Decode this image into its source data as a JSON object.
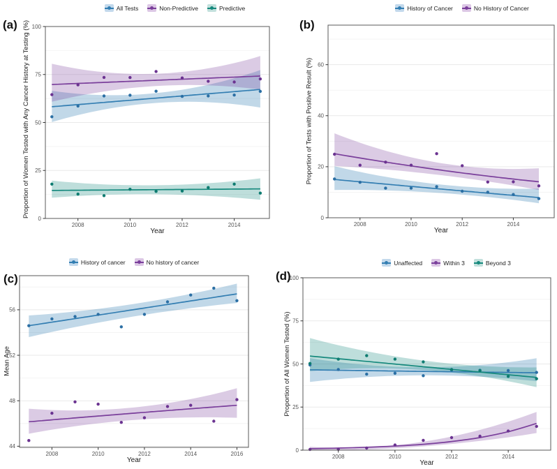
{
  "colors": {
    "blue": {
      "line": "#337eb2",
      "point": "#2b6fa4",
      "band": "rgba(51,126,178,0.30)",
      "key_bg": "#c3d9ec"
    },
    "purple": {
      "line": "#7a3f9b",
      "point": "#6b3391",
      "band": "rgba(122,63,155,0.27)",
      "key_bg": "#dcc7e5"
    },
    "teal": {
      "line": "#16897d",
      "point": "#0e7c71",
      "band": "rgba(22,137,125,0.28)",
      "key_bg": "#c2e0dc"
    }
  },
  "chart_data": [
    {
      "panel_label": "(a)",
      "type": "scatter",
      "xlabel": "Year",
      "ylabel": "Proportion of Women Tested with Any Cancer History at Testing (%)",
      "xlim": [
        2006.75,
        2015.35
      ],
      "ylim": [
        0,
        100
      ],
      "x_ticks": [
        2008,
        2010,
        2012,
        2014
      ],
      "y_ticks": [
        0,
        25,
        50,
        75,
        100
      ],
      "y_minor": [
        12.5,
        37.5,
        62.5,
        87.5
      ],
      "grid": "horizontal-only",
      "legend_position": "top",
      "years": [
        2007,
        2008,
        2009,
        2010,
        2011,
        2012,
        2013,
        2014,
        2015
      ],
      "series": [
        {
          "name": "All Tests",
          "color": "blue",
          "values": [
            53.0,
            58.6,
            63.8,
            64.2,
            66.3,
            63.6,
            63.8,
            64.3,
            66.2
          ],
          "trend": {
            "years": [
              2007,
              2011,
              2015
            ],
            "values": [
              58.2,
              62.7,
              67.2
            ]
          },
          "band": {
            "years": [
              2007,
              2011,
              2015
            ],
            "lo": [
              50.2,
              60.2,
              57.8
            ],
            "hi": [
              66.5,
              65.3,
              77.3
            ]
          }
        },
        {
          "name": "Non-Predictive",
          "color": "purple",
          "values": [
            64.5,
            69.6,
            73.5,
            73.4,
            76.6,
            73.2,
            71.5,
            71.1,
            72.7
          ],
          "trend": {
            "years": [
              2007,
              2011,
              2015
            ],
            "values": [
              69.8,
              72.0,
              74.2
            ]
          },
          "band": {
            "years": [
              2007,
              2011,
              2015
            ],
            "lo": [
              60.8,
              69.0,
              67.2
            ],
            "hi": [
              80.6,
              75.4,
              84.6
            ]
          }
        },
        {
          "name": "Predictive",
          "color": "teal",
          "values": [
            17.9,
            12.7,
            11.9,
            15.2,
            14.1,
            14.3,
            16.1,
            17.9,
            13.2
          ],
          "trend": {
            "years": [
              2007,
              2011,
              2015
            ],
            "values": [
              14.6,
              15.0,
              15.4
            ]
          },
          "band": {
            "years": [
              2007,
              2011,
              2015
            ],
            "lo": [
              10.8,
              12.6,
              9.7
            ],
            "hi": [
              19.7,
              17.3,
              20.9
            ]
          }
        }
      ]
    },
    {
      "panel_label": "(b)",
      "type": "scatter",
      "xlabel": "Year",
      "ylabel": "Proportion of Tests with Positive Result (%)",
      "xlim": [
        2006.75,
        2015.6
      ],
      "ylim": [
        0,
        75.5
      ],
      "x_ticks": [
        2008,
        2010,
        2012,
        2014
      ],
      "y_ticks": [
        0,
        20,
        40,
        60
      ],
      "y_minor": [
        10,
        30,
        50,
        70
      ],
      "grid": "horizontal-only",
      "legend_position": "top",
      "years": [
        2007,
        2008,
        2009,
        2010,
        2011,
        2012,
        2013,
        2014,
        2015
      ],
      "series": [
        {
          "name": "History of Cancer",
          "color": "blue",
          "values": [
            15.2,
            13.9,
            11.6,
            11.6,
            12.2,
            10.4,
            10.0,
            9.1,
            7.5
          ],
          "trend": {
            "years": [
              2007,
              2011,
              2015
            ],
            "values": [
              15.0,
              11.4,
              7.9
            ]
          },
          "band": {
            "years": [
              2007,
              2011,
              2015
            ],
            "lo": [
              10.9,
              9.8,
              5.7
            ],
            "hi": [
              20.2,
              13.2,
              11.4
            ]
          }
        },
        {
          "name": "No History of Cancer",
          "color": "purple",
          "values": [
            24.9,
            20.6,
            21.8,
            20.6,
            25.1,
            20.4,
            14.0,
            14.1,
            12.5
          ],
          "trend": {
            "years": [
              2007,
              2011,
              2015
            ],
            "values": [
              25.1,
              18.9,
              14.1
            ]
          },
          "band": {
            "years": [
              2007,
              2011,
              2015
            ],
            "lo": [
              20.3,
              16.9,
              10.9
            ],
            "hi": [
              33.1,
              21.7,
              19.4
            ]
          }
        }
      ]
    },
    {
      "panel_label": "(c)",
      "type": "scatter",
      "xlabel": "Year",
      "ylabel": "Mean Age",
      "xlim": [
        2006.6,
        2016.5
      ],
      "ylim": [
        43.9,
        59.0
      ],
      "x_ticks": [
        2008,
        2010,
        2012,
        2014,
        2016
      ],
      "y_ticks": [
        44,
        48,
        52,
        56
      ],
      "y_minor": [
        46,
        50,
        54,
        58
      ],
      "grid": "horizontal-only",
      "legend_position": "top",
      "years": [
        2007,
        2008,
        2009,
        2010,
        2011,
        2012,
        2013,
        2014,
        2015,
        2016
      ],
      "series": [
        {
          "name": "History of cancer",
          "color": "blue",
          "values": [
            54.6,
            55.2,
            55.4,
            55.6,
            54.5,
            55.6,
            56.7,
            57.3,
            57.9,
            56.8
          ],
          "trend": {
            "years": [
              2007,
              2011.5,
              2016
            ],
            "values": [
              54.6,
              56.0,
              57.4
            ]
          },
          "band": {
            "years": [
              2007,
              2011.5,
              2016
            ],
            "lo": [
              53.6,
              55.4,
              56.6
            ],
            "hi": [
              55.5,
              56.5,
              58.3
            ]
          }
        },
        {
          "name": "No history of cancer",
          "color": "purple",
          "values": [
            44.5,
            46.9,
            47.9,
            47.7,
            46.1,
            46.5,
            47.5,
            47.6,
            46.2,
            48.1
          ],
          "trend": {
            "years": [
              2007,
              2011.5,
              2016
            ],
            "values": [
              46.15,
              46.9,
              47.6
            ]
          },
          "band": {
            "years": [
              2007,
              2011.5,
              2016
            ],
            "lo": [
              45.1,
              46.3,
              46.5
            ],
            "hi": [
              47.3,
              47.4,
              49.1
            ]
          }
        }
      ]
    },
    {
      "panel_label": "(d)",
      "type": "scatter",
      "xlabel": "Year",
      "ylabel": "Proportion of All Women Tested (%)",
      "xlim": [
        2006.75,
        2015.5
      ],
      "ylim": [
        0,
        100
      ],
      "x_ticks": [
        2008,
        2010,
        2012,
        2014
      ],
      "y_ticks": [
        0,
        25,
        50,
        75,
        100
      ],
      "y_minor": [
        12.5,
        37.5,
        62.5,
        87.5
      ],
      "grid": "horizontal-only",
      "legend_position": "top",
      "years": [
        2007,
        2008,
        2009,
        2010,
        2011,
        2012,
        2013,
        2014,
        2015
      ],
      "series": [
        {
          "name": "Unaffected",
          "color": "blue",
          "values": [
            49.4,
            46.8,
            44.1,
            44.6,
            43.2,
            46.5,
            46.3,
            46.2,
            45.1
          ],
          "trend": {
            "years": [
              2007,
              2011,
              2015
            ],
            "values": [
              46.6,
              45.7,
              44.9
            ]
          },
          "band": {
            "years": [
              2007,
              2011,
              2015
            ],
            "lo": [
              39.6,
              43.4,
              40.0
            ],
            "hi": [
              53.4,
              48.1,
              53.3
            ]
          }
        },
        {
          "name": "Within 3",
          "color": "purple",
          "values": [
            0.4,
            0.5,
            1.2,
            3.0,
            5.7,
            7.3,
            8.1,
            11.1,
            13.8
          ],
          "trend": {
            "years": [
              2007,
              2008,
              2009,
              2010,
              2011,
              2012,
              2013,
              2014,
              2015
            ],
            "values": [
              0.9,
              1.2,
              1.7,
              2.4,
              3.4,
              5.0,
              7.3,
              10.7,
              15.5
            ]
          },
          "band": {
            "years": [
              2007,
              2011,
              2015
            ],
            "lo": [
              0.0,
              2.2,
              9.9
            ],
            "hi": [
              2.0,
              4.9,
              22.2
            ]
          }
        },
        {
          "name": "Beyond 3",
          "color": "teal",
          "values": [
            50.3,
            52.8,
            54.8,
            52.8,
            51.2,
            46.8,
            46.2,
            42.8,
            41.4
          ],
          "trend": {
            "years": [
              2007,
              2011,
              2015
            ],
            "values": [
              54.6,
              48.4,
              42.2
            ]
          },
          "band": {
            "years": [
              2007,
              2011,
              2015
            ],
            "lo": [
              45.8,
              46.5,
              36.5
            ],
            "hi": [
              65.0,
              52.0,
              48.0
            ]
          }
        }
      ]
    }
  ]
}
